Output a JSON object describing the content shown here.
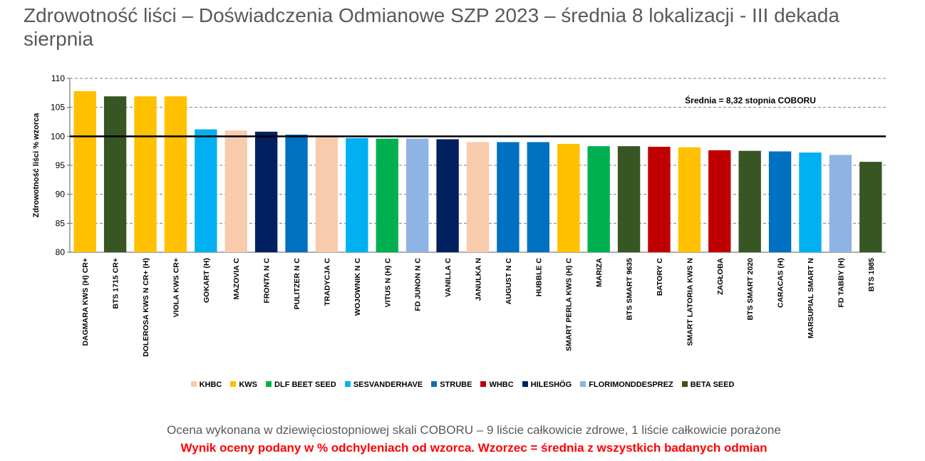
{
  "title": "Zdrowotność liści – Doświadczenia Odmianowe SZP 2023 – średnia 8 lokalizacji - III dekada sierpnia",
  "chart_data": {
    "type": "bar",
    "ylabel": "Zdrowotność liści % wzorca",
    "ylim": [
      80,
      110
    ],
    "yticks": [
      80,
      85,
      90,
      95,
      100,
      105,
      110
    ],
    "grid": true,
    "reference_line": 100,
    "annotation": "Średnia = 8,32 stopnia COBORU",
    "categories": [
      "DAGMARA KWS (H) CR+",
      "BTS 1715 CR+",
      "DOLEROSA KWS N CR+ (H)",
      "VIOLA KWS CR+",
      "GOKART (H)",
      "MAZOVIA C",
      "FRONTA N C",
      "PULITZER N C",
      "TRADYCJA C",
      "WOJOWNIK N C",
      "VITUS N (H) C",
      "FD JUNON N C",
      "VANILLA C",
      "JANULKA N",
      "AUGUST N C",
      "HUBBLE C",
      "SMART PERLA KWS (H) C",
      "MARIZA",
      "BTS SMART 9635",
      "BATORY C",
      "SMART LATORIA KWS N",
      "ZAGŁOBA",
      "BTS SMART 2020",
      "CARACAS (H)",
      "MARSUPIAL SMART N",
      "FD TABBY (H)",
      "BTS 1985"
    ],
    "values": [
      107.8,
      106.9,
      106.9,
      106.9,
      101.2,
      101.0,
      100.8,
      100.3,
      99.9,
      99.7,
      99.6,
      99.6,
      99.5,
      99.0,
      99.0,
      99.0,
      98.7,
      98.3,
      98.3,
      98.2,
      98.1,
      97.6,
      97.5,
      97.4,
      97.2,
      96.8,
      95.6
    ],
    "breeders": [
      "KWS",
      "BETA SEED",
      "KWS",
      "KWS",
      "SESVANDERHAVE",
      "KHBC",
      "HILESHÖG",
      "STRUBE",
      "KHBC",
      "SESVANDERHAVE",
      "DLF BEET SEED",
      "FLORIMONDDESPREZ",
      "HILESHÖG",
      "KHBC",
      "STRUBE",
      "STRUBE",
      "KWS",
      "DLF BEET SEED",
      "BETA SEED",
      "WHBC",
      "KWS",
      "WHBC",
      "BETA SEED",
      "STRUBE",
      "SESVANDERHAVE",
      "FLORIMONDDESPREZ",
      "BETA SEED"
    ],
    "legend": [
      {
        "name": "KHBC",
        "color": "#f8cbad"
      },
      {
        "name": "KWS",
        "color": "#ffc000"
      },
      {
        "name": "DLF BEET SEED",
        "color": "#00b050"
      },
      {
        "name": "SESVANDERHAVE",
        "color": "#00b0f0"
      },
      {
        "name": "STRUBE",
        "color": "#0070c0"
      },
      {
        "name": "WHBC",
        "color": "#c00000"
      },
      {
        "name": "HILESHÖG",
        "color": "#002060"
      },
      {
        "name": "FLORIMONDDESPREZ",
        "color": "#8eb4e3"
      },
      {
        "name": "BETA SEED",
        "color": "#375623"
      }
    ],
    "legend_position": "bottom"
  },
  "notes": {
    "scale": "Ocena wykonana w dziewięciostopniowej skali COBORU – 9 liście całkowicie zdrowe, 1 liście całkowicie porażone",
    "result": "Wynik oceny podany w % odchyleniach od wzorca. Wzorzec = średnia z wszystkich badanych odmian"
  }
}
